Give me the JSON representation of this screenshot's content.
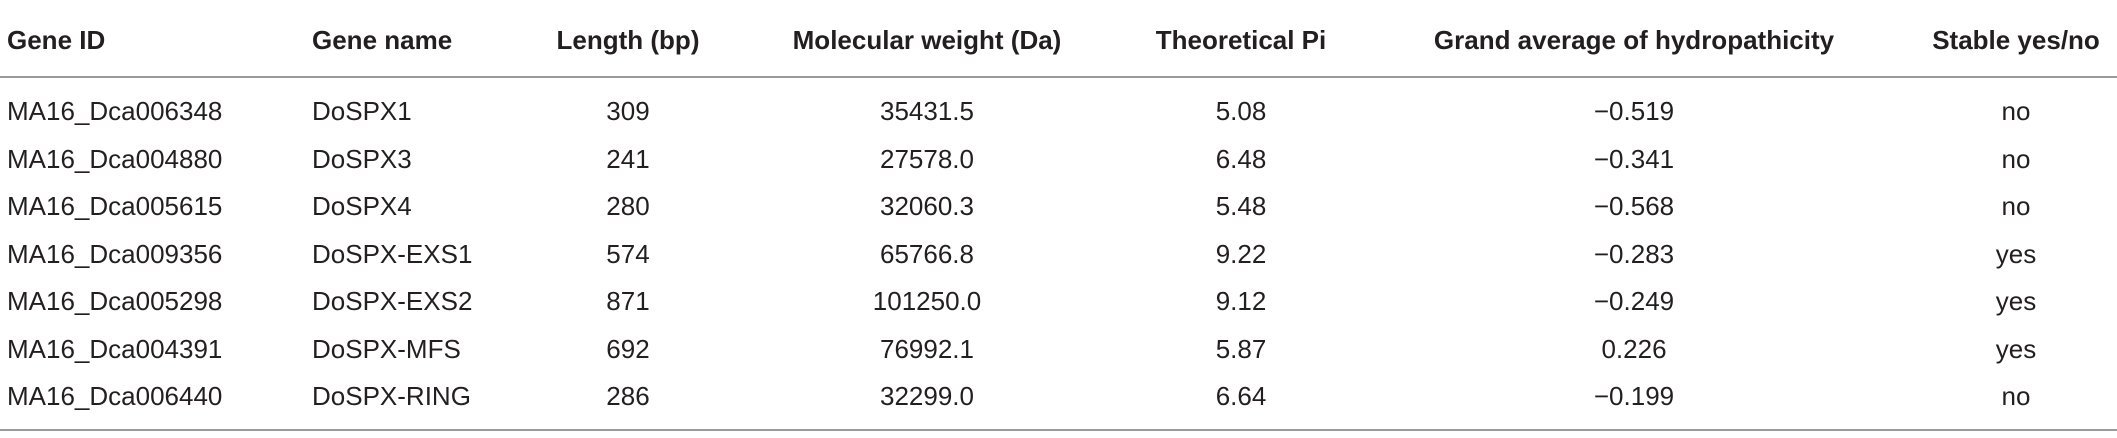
{
  "table": {
    "header": [
      "Gene ID",
      "Gene name",
      "Length (bp)",
      "Molecular weight (Da)",
      "Theoretical Pi",
      "Grand average of hydropathicity",
      "Stable yes/no"
    ],
    "rows": [
      [
        "MA16_Dca006348",
        "DoSPX1",
        "309",
        "35431.5",
        "5.08",
        "−0.519",
        "no"
      ],
      [
        "MA16_Dca004880",
        "DoSPX3",
        "241",
        "27578.0",
        "6.48",
        "−0.341",
        "no"
      ],
      [
        "MA16_Dca005615",
        "DoSPX4",
        "280",
        "32060.3",
        "5.48",
        "−0.568",
        "no"
      ],
      [
        "MA16_Dca009356",
        "DoSPX-EXS1",
        "574",
        "65766.8",
        "9.22",
        "−0.283",
        "yes"
      ],
      [
        "MA16_Dca005298",
        "DoSPX-EXS2",
        "871",
        "101250.0",
        "9.12",
        "−0.249",
        "yes"
      ],
      [
        "MA16_Dca004391",
        "DoSPX-MFS",
        "692",
        "76992.1",
        "5.87",
        "0.226",
        "yes"
      ],
      [
        "MA16_Dca006440",
        "DoSPX-RING",
        "286",
        "32299.0",
        "6.64",
        "−0.199",
        "no"
      ]
    ]
  }
}
